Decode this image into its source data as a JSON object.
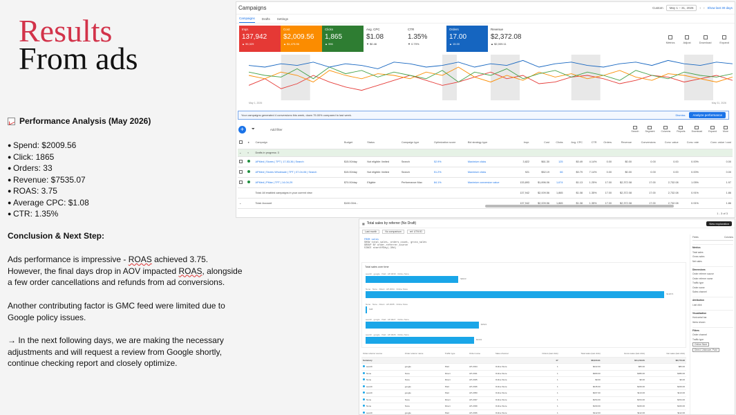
{
  "slide": {
    "title_line1": "Results",
    "title_line2": "From ads",
    "analysis_heading": "Performance Analysis (May 2026)",
    "metrics": [
      "Spend: $2009.56",
      "Click: 1865",
      "Orders: 33",
      "Revenue: $7535.07",
      "ROAS: 3.75",
      "Average CPC: $1.08",
      "CTR: 1.35%"
    ],
    "conclusion_heading": "Conclusion & Next Step:",
    "para1_a": "Ads performance is impressive - ",
    "para1_roas": "ROAS",
    "para1_b": " achieved 3.75. However, the final days drop in ",
    "para1_aov": "AOV",
    "para1_c": " impacted ",
    "para1_roas2": "ROAS",
    "para1_d": ", alongside a few order cancellations and refunds from ad conversions.",
    "para2": "Another contributing factor is GMC feed were limited due to Google policy issues.",
    "para3": "→ In the next following days, we are  making the necessary adjustments and will request a review from Google shortly, continue checking report and closely optimize."
  },
  "campaigns": {
    "header_title": "Campaigns",
    "date_label": "Custom",
    "date_range": "May 1 – 31, 2026",
    "show_last": "Show last 30 days",
    "tabs": [
      "Campaigns",
      "Drafts",
      "Settings"
    ],
    "cards": [
      {
        "label": "Impr.",
        "value": "137,942",
        "sub": "▲ 90,329",
        "bg": "#e53935"
      },
      {
        "label": "Cost",
        "value": "$2,009.56",
        "sub": "▲ $1,475.96",
        "bg": "#fb8c00"
      },
      {
        "label": "Clicks",
        "value": "1,865",
        "sub": "▲ 996",
        "bg": "#2e7d32"
      },
      {
        "label": "Avg. CPC",
        "value": "$1.08",
        "sub": "▼ $0.46",
        "bg": ""
      },
      {
        "label": "CTR",
        "value": "1.35%",
        "sub": "▼ 0.79%",
        "bg": ""
      },
      {
        "label": "Orders",
        "value": "17.00",
        "sub": "▲ 15.00",
        "bg": "#1565c0"
      },
      {
        "label": "Revenue",
        "value": "$2,372.08",
        "sub": "▲ $2,009.11",
        "bg": ""
      }
    ],
    "card_icons": [
      "Metrics",
      "Adjust",
      "Download",
      "Expand"
    ],
    "chart_start": "May 1, 2026",
    "chart_end": "May 31, 2026",
    "alert_text": "Your campaigns generated 4 conversions this week, down 75.00% compared to last week.",
    "alert_dismiss": "Dismiss",
    "alert_button": "Analyze performance",
    "add_filter": "Add filter",
    "toolbar_icons": [
      "Search",
      "Segment",
      "Columns",
      "Reports",
      "Download",
      "Expand",
      "More"
    ],
    "columns": [
      "Campaign",
      "Budget",
      "Status",
      "Campaign type",
      "Optimization score",
      "Bid strategy type",
      "Impr.",
      "Cost",
      "Clicks",
      "Avg. CPC",
      "CTR",
      "Orders",
      "Revenue",
      "Conversions",
      "Conv. value",
      "Conv. rate",
      "Conv. value / cost"
    ],
    "draft_row": "Drafts in progress: 3",
    "rows": [
      [
        "APMed | Stores | TPT | 17-53-36 | Search",
        "$15.00/day",
        "Not eligible: limited",
        "Search",
        "52.9%",
        "Maximize clicks",
        "3,822",
        "$61.30",
        "125",
        "$0.49",
        "4.14%",
        "0.00",
        "$0.00",
        "0.00",
        "0.00",
        "0.00%",
        "0.00"
      ],
      [
        "APMed | Stores Wholesale | TPT | 07-04-06 | Search",
        "$15.00/day",
        "Not eligible: limited",
        "Search",
        "51.2%",
        "Maximize clicks",
        "921",
        "$52.19",
        "66",
        "$0.79",
        "7.14%",
        "0.00",
        "$0.00",
        "0.00",
        "0.00",
        "0.00%",
        "0.00"
      ],
      [
        "APMed | PMax | TPT | 14-04-29",
        "$70.00/day",
        "Eligible",
        "Performance Max",
        "84.1%",
        "Maximize conversion value",
        "133,893",
        "$1,896.06",
        "1,674",
        "$1.13",
        "1.25%",
        "17.00",
        "$2,372.08",
        "17.00",
        "2,732.08",
        "1.05%",
        "1.97"
      ]
    ],
    "total_row_label": "Total: All enabled campaigns in your current view",
    "total_row": [
      "",
      "",
      "",
      "",
      "",
      "",
      "137,942",
      "$2,009.56",
      "1,865",
      "$1.08",
      "1.35%",
      "17.00",
      "$2,372.08",
      "17.00",
      "2,732.08",
      "0.91%",
      "1.86"
    ],
    "account_row_label": "Total: Account",
    "account_budget": "$100.00/d...",
    "account_row": [
      "",
      "",
      "",
      "",
      "",
      "",
      "137,942",
      "$2,009.56",
      "1,865",
      "$1.08",
      "1.35%",
      "17.00",
      "$2,372.08",
      "17.00",
      "2,732.08",
      "0.91%",
      "1.86"
    ],
    "pagination": "1 - 3 of 3"
  },
  "campaign_chart": {
    "series": [
      {
        "color": "#e53935",
        "values": [
          18,
          26,
          14,
          20,
          30,
          22,
          16,
          12,
          18,
          24,
          30,
          24,
          18,
          22,
          28,
          34,
          26,
          30,
          20,
          22,
          28,
          30,
          26,
          20,
          24,
          30,
          28,
          22,
          26,
          30,
          24
        ]
      },
      {
        "color": "#fb8c00",
        "values": [
          30,
          26,
          34,
          30,
          22,
          36,
          30,
          26,
          32,
          30,
          26,
          34,
          30,
          40,
          28,
          22,
          30,
          24,
          34,
          28,
          32,
          26,
          30,
          36,
          28,
          24,
          32,
          30,
          26,
          22,
          28
        ]
      },
      {
        "color": "#43a047",
        "values": [
          34,
          30,
          28,
          38,
          26,
          40,
          32,
          36,
          28,
          34,
          30,
          26,
          36,
          22,
          34,
          30,
          38,
          26,
          32,
          36,
          28,
          34,
          30,
          24,
          36,
          30,
          26,
          34,
          30,
          28,
          32
        ]
      },
      {
        "color": "#1565c0",
        "values": [
          42,
          40,
          44,
          42,
          46,
          40,
          44,
          42,
          38,
          46,
          44,
          40,
          42,
          46,
          40,
          44,
          42,
          48,
          40,
          44,
          46,
          42,
          40,
          44,
          46,
          42,
          48,
          44,
          42,
          46,
          44
        ]
      }
    ]
  },
  "report": {
    "title": "Total sales by referrer (No Draft)",
    "subtitle_chips": [
      "Last month",
      "No comparison",
      "ref: UTM ID"
    ],
    "query_lines": [
      "FROM sales",
      "SHOW total_sales, orders_count, gross_sales",
      "GROUP BY order_referrer_source",
      "SINCE startOfDay(-30d)"
    ],
    "export": "New exploration",
    "bar_title": "Total sales over time",
    "bars": [
      {
        "label": "search · google · Paid · AP-0030 · Online Store",
        "value": "$4023",
        "pct": 0.295
      },
      {
        "label": "None · None · Direct · AP-0034 · Online Store",
        "value": "$12874",
        "pct": 0.95
      },
      {
        "label": "None · None · Direct · AP-0035 · Online Store",
        "value": "$48",
        "pct": 0.005
      },
      {
        "label": "search · google · Paid · AP-0027 · Online Store",
        "value": "$3523",
        "pct": 0.36
      },
      {
        "label": "search · google · Paid · AP-0026 · Online Store",
        "value": "$3432",
        "pct": 0.345
      }
    ],
    "columns": [
      "Order referrer source",
      "Order referrer name",
      "Traffic type",
      "Order name",
      "Sales channel",
      "Orders (last click)",
      "Total sales (last click)",
      "Gross sales (last click)",
      "Net sales (last click)"
    ],
    "summary": [
      "Summary",
      "",
      "",
      "",
      "",
      "47",
      "$8,034.91",
      "$11,219.81",
      "$8,773.32"
    ],
    "rows": [
      [
        "search",
        "google",
        "Paid",
        "AP-2044",
        "Online Store",
        "1",
        "$222.00",
        "$83.00",
        "$83.00"
      ],
      [
        "None",
        "None",
        "Direct",
        "AP-2041",
        "Online Store",
        "1",
        "$380.00",
        "$380.00",
        "$380.00"
      ],
      [
        "None",
        "None",
        "Direct",
        "AP-2045",
        "Online Store",
        "1",
        "$0.00",
        "$0.00",
        "$0.00"
      ],
      [
        "search",
        "google",
        "Paid",
        "AP-2046",
        "Online Store",
        "1",
        "$245.00",
        "$229.00",
        "$229.00"
      ],
      [
        "search",
        "google",
        "Paid",
        "AP-2050",
        "Online Store",
        "1",
        "$207.00",
        "$113.00",
        "$113.00"
      ],
      [
        "None",
        "None",
        "Direct",
        "AP-2037",
        "Online Store",
        "1",
        "$154.00",
        "$154.00",
        "$154.00"
      ],
      [
        "None",
        "None",
        "Direct",
        "AP-2039",
        "Online Store",
        "1",
        "$160.00",
        "$160.00",
        "$160.00"
      ],
      [
        "search",
        "google",
        "Paid",
        "AP-2036",
        "Online Store",
        "1",
        "$112.00",
        "$112.00",
        "$112.00"
      ],
      [
        "None",
        "None",
        "Direct",
        "AP-2033",
        "Online Store",
        "1",
        "$98.00",
        "$98.00",
        "$98.00"
      ]
    ],
    "side_tabs": [
      "Fields",
      "Columns"
    ],
    "side_sections": [
      {
        "head": "Metrics",
        "items": [
          "Total sales",
          "Gross sales",
          "Net sales"
        ]
      },
      {
        "head": "Dimensions",
        "items": [
          "Order referrer source",
          "Order referrer name",
          "Traffic type",
          "Order name",
          "Sales channel"
        ]
      },
      {
        "head": "Attribution",
        "items": [
          "Last click"
        ]
      },
      {
        "head": "Visualization",
        "items": [
          "Horizontal bar",
          "Items shown"
        ]
      },
      {
        "head": "Filters",
        "items": [
          "Order channel",
          "Traffic type"
        ]
      }
    ],
    "filter_chips": [
      "Online Store",
      "Direct, Unknown, Paid"
    ]
  }
}
